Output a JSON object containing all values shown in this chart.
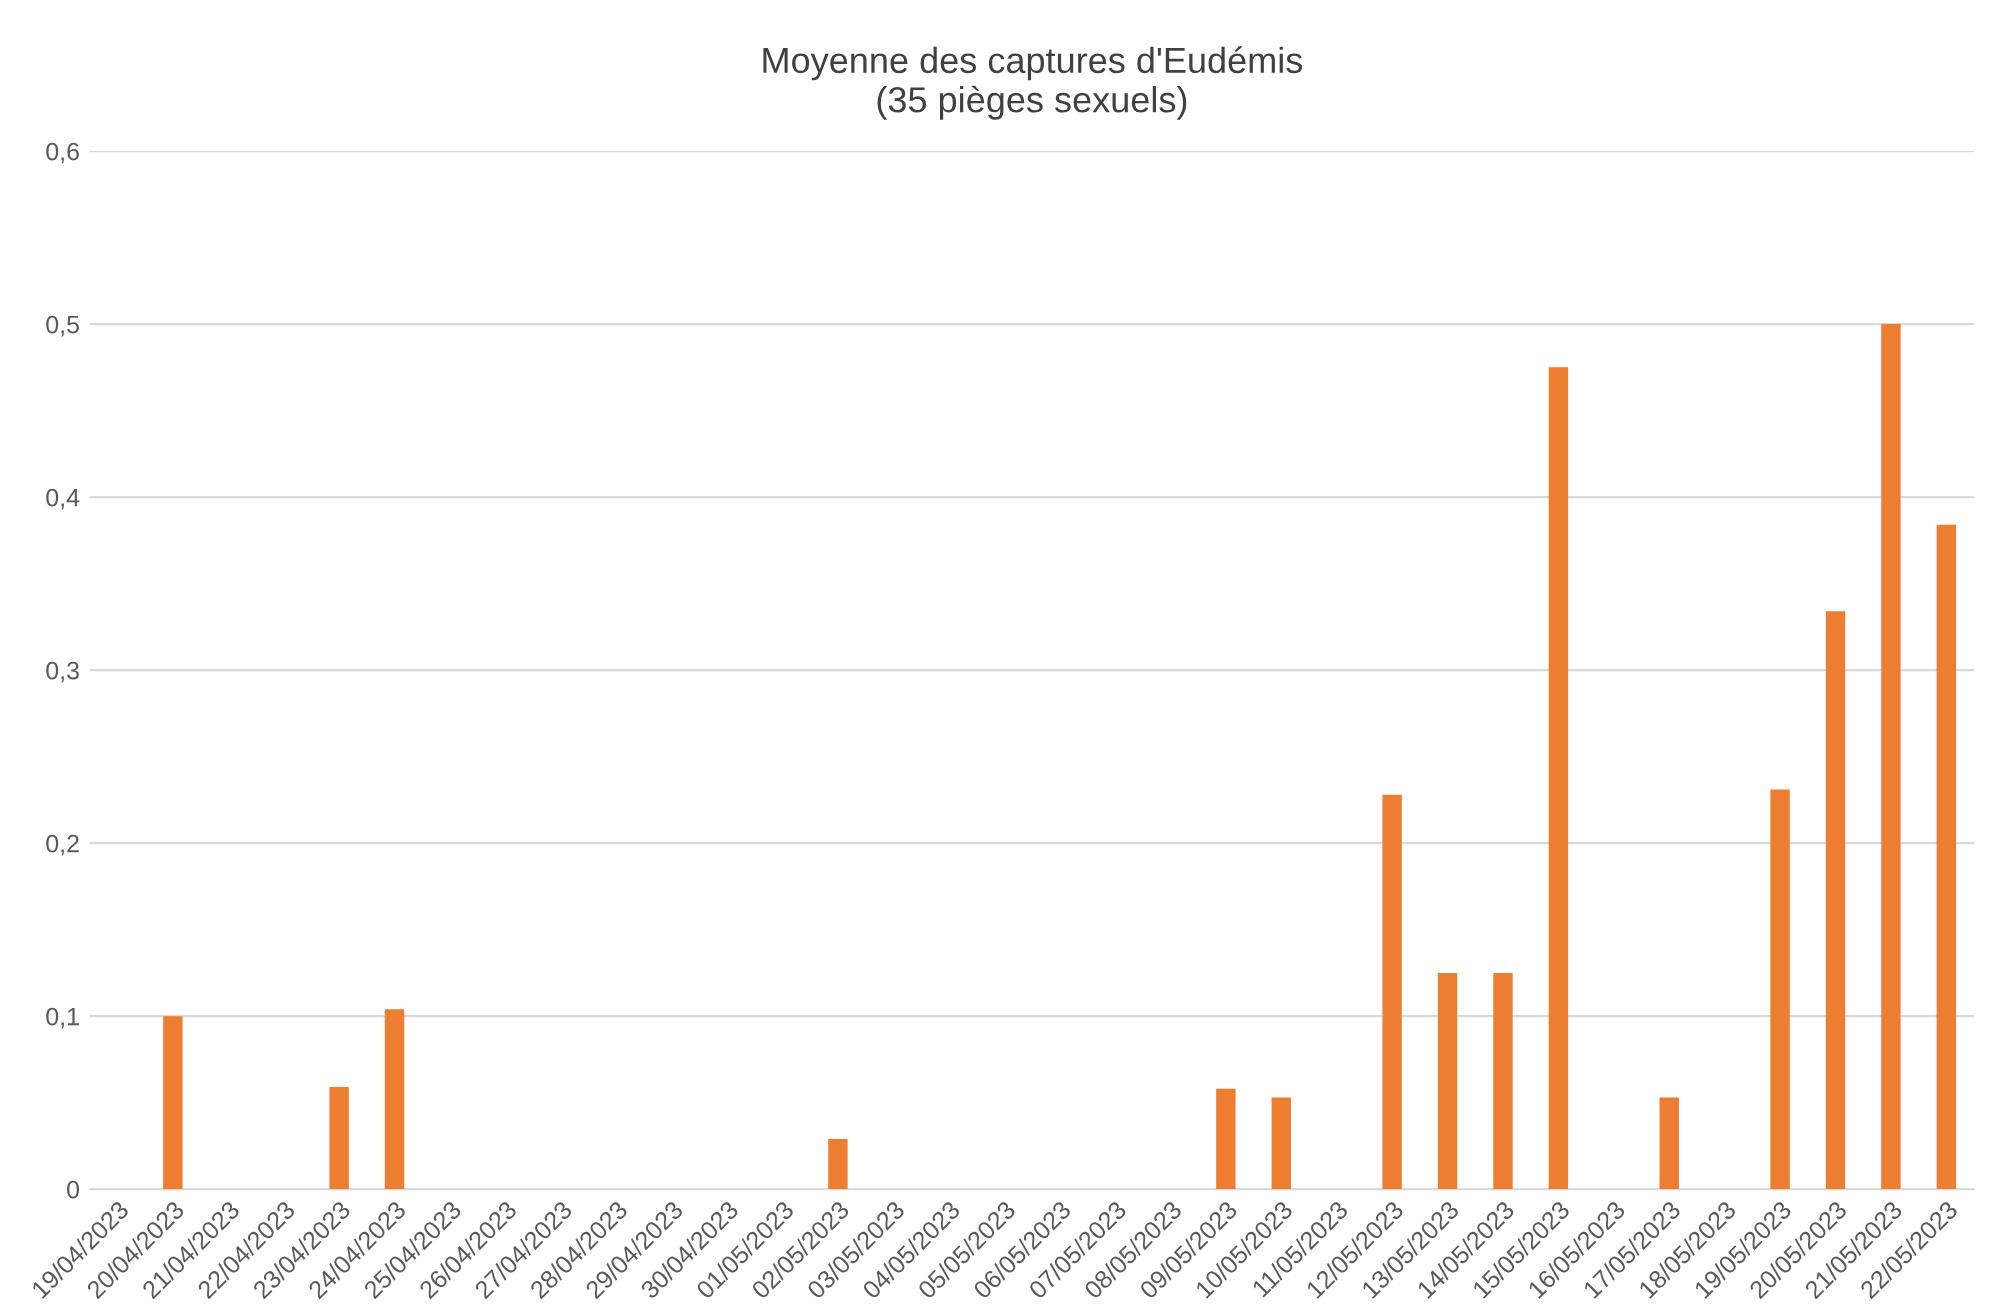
{
  "chart_data": {
    "type": "bar",
    "title": "Moyenne des captures d'Eudémis\n(35 pièges sexuels)",
    "categories": [
      "19/04/2023",
      "20/04/2023",
      "21/04/2023",
      "22/04/2023",
      "23/04/2023",
      "24/04/2023",
      "25/04/2023",
      "26/04/2023",
      "27/04/2023",
      "28/04/2023",
      "29/04/2023",
      "30/04/2023",
      "01/05/2023",
      "02/05/2023",
      "03/05/2023",
      "04/05/2023",
      "05/05/2023",
      "06/05/2023",
      "07/05/2023",
      "08/05/2023",
      "09/05/2023",
      "10/05/2023",
      "11/05/2023",
      "12/05/2023",
      "13/05/2023",
      "14/05/2023",
      "15/05/2023",
      "16/05/2023",
      "17/05/2023",
      "18/05/2023",
      "19/05/2023",
      "20/05/2023",
      "21/05/2023",
      "22/05/2023"
    ],
    "values": [
      null,
      0.1,
      null,
      null,
      0.059,
      0.104,
      null,
      null,
      null,
      null,
      null,
      null,
      null,
      0.029,
      null,
      null,
      null,
      null,
      null,
      null,
      0.058,
      0.053,
      null,
      0.228,
      0.125,
      0.125,
      0.475,
      null,
      0.053,
      null,
      0.231,
      0.334,
      0.5,
      0.384
    ],
    "color": "#ed7d31",
    "ylim": [
      0,
      0.6
    ],
    "yticks": [
      0,
      {
        "value": 0.1,
        "label": "0,1"
      },
      {
        "value": 0.2,
        "label": "0,2"
      },
      {
        "value": 0.3,
        "label": "0,3"
      },
      {
        "value": 0.4,
        "label": "0,4"
      },
      {
        "value": 0.5,
        "label": "0,5"
      },
      {
        "value": 0.6,
        "label": "0,6"
      }
    ],
    "grid": "y",
    "legend": false
  }
}
